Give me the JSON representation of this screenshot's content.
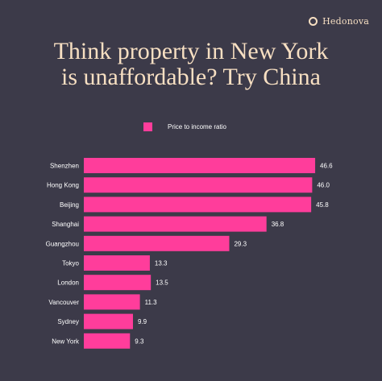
{
  "brand": {
    "name": "Hedonova",
    "icon": "ring-logo-icon",
    "color": "#f7dfc2"
  },
  "title_lines": [
    "Think property in New York",
    "is unaffordable? Try China"
  ],
  "colors": {
    "background": "#3c3a49",
    "bar": "#ff3d9b",
    "title": "#f7dfc2",
    "text": "#ffffff"
  },
  "chart_data": {
    "type": "bar",
    "orientation": "horizontal",
    "title": "Think property in New York is unaffordable? Try China",
    "legend_position": "top-center",
    "grid": false,
    "xlim": [
      0,
      50
    ],
    "categories": [
      "Shenzhen",
      "Hong Kong",
      "Beijing",
      "Shanghai",
      "Guangzhou",
      "Tokyo",
      "London",
      "Vancouver",
      "Sydney",
      "New York"
    ],
    "series": [
      {
        "name": "Price to income ratio",
        "values": [
          46.6,
          46.0,
          45.8,
          36.8,
          29.3,
          13.3,
          13.5,
          11.3,
          9.9,
          9.3
        ],
        "labels": [
          "46.6",
          "46.0",
          "45.8",
          "36.8",
          "29.3",
          "13.3",
          "13.5",
          "11.3",
          "9.9",
          "9.3"
        ]
      }
    ]
  }
}
